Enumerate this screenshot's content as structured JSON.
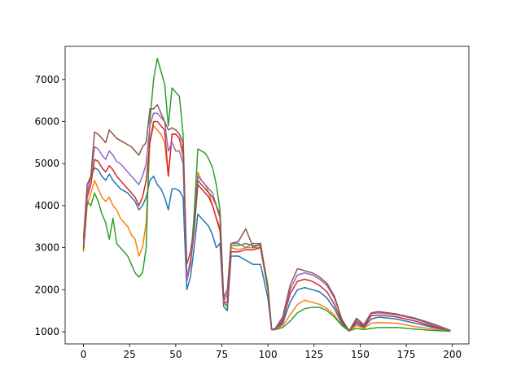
{
  "chart_data": {
    "type": "line",
    "x": [
      0,
      2,
      4,
      6,
      8,
      10,
      12,
      14,
      16,
      18,
      20,
      22,
      24,
      26,
      28,
      30,
      32,
      34,
      36,
      38,
      40,
      42,
      44,
      46,
      48,
      50,
      52,
      54,
      56,
      58,
      60,
      62,
      64,
      66,
      68,
      70,
      72,
      74,
      76,
      78,
      80,
      84,
      88,
      92,
      96,
      100,
      102,
      104,
      108,
      112,
      116,
      120,
      124,
      128,
      132,
      136,
      140,
      144,
      148,
      152,
      156,
      160,
      170,
      180,
      190,
      199
    ],
    "series": [
      {
        "color": "#1f77b4",
        "values": [
          2950,
          4300,
          4700,
          4900,
          4850,
          4700,
          4600,
          4750,
          4600,
          4500,
          4400,
          4350,
          4300,
          4200,
          4100,
          3900,
          4000,
          4200,
          4600,
          4700,
          4500,
          4400,
          4200,
          3900,
          4400,
          4400,
          4350,
          4200,
          2000,
          2300,
          3000,
          3800,
          3700,
          3600,
          3500,
          3300,
          3000,
          3100,
          1600,
          1500,
          2800,
          2800,
          2700,
          2600,
          2600,
          1800,
          1050,
          1050,
          1200,
          1700,
          2000,
          2050,
          2000,
          1950,
          1800,
          1550,
          1200,
          1020,
          1200,
          1100,
          1300,
          1350,
          1300,
          1200,
          1100,
          1020
        ]
      },
      {
        "color": "#ff7f0e",
        "values": [
          2900,
          4000,
          4300,
          4600,
          4400,
          4200,
          4100,
          4200,
          4000,
          3900,
          3700,
          3600,
          3500,
          3300,
          3200,
          2800,
          3000,
          3600,
          5500,
          5900,
          5800,
          5700,
          5500,
          4700,
          5700,
          5700,
          5600,
          5300,
          2300,
          2700,
          3500,
          4800,
          4600,
          4500,
          4300,
          4000,
          3700,
          3500,
          1700,
          1600,
          3000,
          2950,
          3000,
          3000,
          3000,
          2000,
          1050,
          1050,
          1150,
          1400,
          1650,
          1750,
          1700,
          1650,
          1550,
          1400,
          1150,
          1020,
          1150,
          1080,
          1200,
          1220,
          1200,
          1120,
          1060,
          1010
        ]
      },
      {
        "color": "#2ca02c",
        "values": [
          2950,
          4100,
          4000,
          4300,
          4100,
          3800,
          3600,
          3200,
          3700,
          3100,
          3000,
          2900,
          2800,
          2600,
          2400,
          2300,
          2400,
          3000,
          6000,
          7000,
          7500,
          7200,
          6900,
          5900,
          6800,
          6700,
          6600,
          5700,
          2300,
          2600,
          3800,
          5350,
          5300,
          5250,
          5100,
          4900,
          4500,
          3900,
          1700,
          1600,
          3050,
          3050,
          3100,
          3050,
          3050,
          2100,
          1050,
          1050,
          1100,
          1250,
          1450,
          1550,
          1580,
          1580,
          1500,
          1350,
          1150,
          1020,
          1080,
          1050,
          1080,
          1100,
          1100,
          1060,
          1030,
          1010
        ]
      },
      {
        "color": "#d62728",
        "values": [
          3000,
          4200,
          4500,
          5100,
          5050,
          4900,
          4800,
          4950,
          4850,
          4700,
          4600,
          4500,
          4400,
          4300,
          4200,
          4000,
          4200,
          4600,
          5500,
          6000,
          6000,
          5900,
          5800,
          4700,
          5700,
          5700,
          5600,
          5200,
          2200,
          2600,
          3400,
          4500,
          4400,
          4300,
          4200,
          4000,
          3700,
          3400,
          1700,
          1700,
          2900,
          2900,
          2950,
          2950,
          3000,
          2000,
          1050,
          1050,
          1250,
          1900,
          2200,
          2250,
          2200,
          2100,
          1950,
          1650,
          1250,
          1020,
          1250,
          1120,
          1380,
          1400,
          1350,
          1250,
          1120,
          1020
        ]
      },
      {
        "color": "#9467bd",
        "values": [
          3100,
          4300,
          4700,
          5400,
          5350,
          5200,
          5100,
          5300,
          5200,
          5050,
          5000,
          4900,
          4800,
          4700,
          4600,
          4500,
          4700,
          5000,
          5900,
          6200,
          6200,
          6100,
          6000,
          5300,
          5500,
          5300,
          5300,
          5000,
          2200,
          2700,
          3500,
          4700,
          4600,
          4500,
          4400,
          4300,
          4000,
          3700,
          1700,
          1900,
          3100,
          3100,
          3000,
          3100,
          3100,
          2000,
          1050,
          1050,
          1300,
          2000,
          2350,
          2400,
          2350,
          2250,
          2100,
          1800,
          1300,
          1020,
          1300,
          1150,
          1430,
          1450,
          1400,
          1300,
          1150,
          1020
        ]
      },
      {
        "color": "#8c564b",
        "values": [
          3200,
          4500,
          4700,
          5750,
          5700,
          5600,
          5500,
          5800,
          5700,
          5600,
          5550,
          5500,
          5450,
          5400,
          5300,
          5200,
          5400,
          5500,
          6300,
          6300,
          6400,
          6200,
          6000,
          5800,
          5850,
          5800,
          5700,
          5500,
          2600,
          2900,
          3500,
          4600,
          4500,
          4400,
          4300,
          4200,
          4000,
          3800,
          1800,
          2000,
          3100,
          3150,
          3450,
          3000,
          3100,
          2000,
          1050,
          1080,
          1350,
          2100,
          2500,
          2450,
          2400,
          2300,
          2150,
          1850,
          1300,
          1020,
          1320,
          1170,
          1450,
          1480,
          1420,
          1320,
          1180,
          1030
        ]
      }
    ],
    "xlim": [
      -9.95,
      208.95
    ],
    "xticks": [
      0,
      25,
      50,
      75,
      100,
      125,
      150,
      175,
      200
    ],
    "ylim": [
      710,
      7790
    ],
    "yticks": [
      1000,
      2000,
      3000,
      4000,
      5000,
      6000,
      7000
    ]
  }
}
